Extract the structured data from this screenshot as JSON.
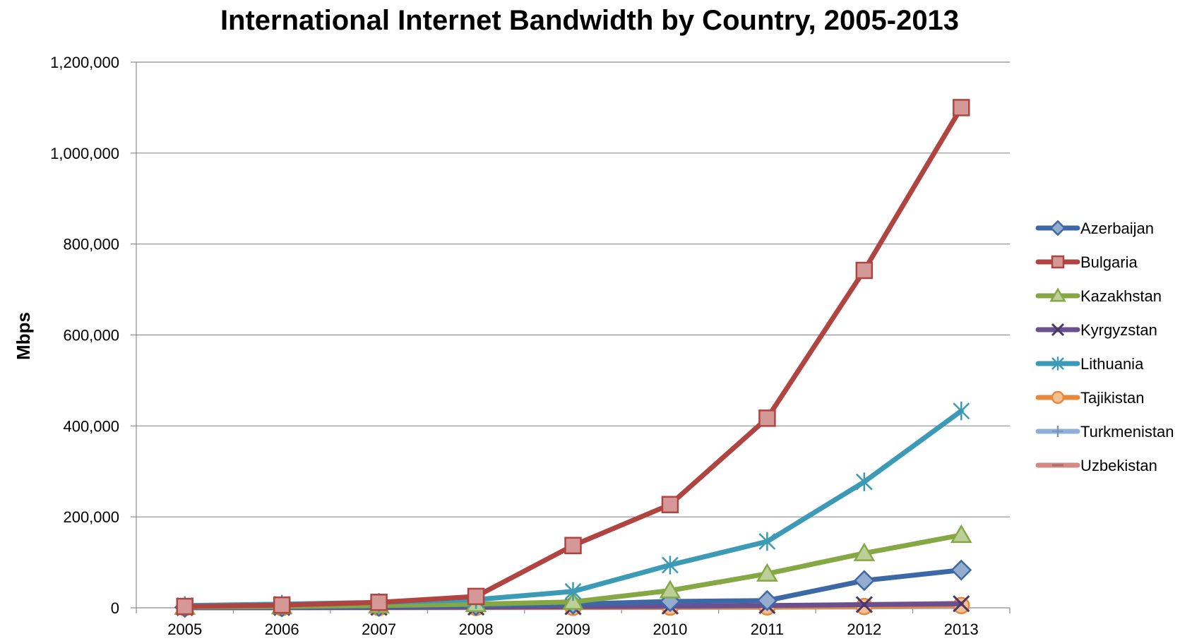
{
  "chart_data": {
    "type": "line",
    "title": "International Internet Bandwidth by Country, 2005-2013",
    "xlabel": "",
    "ylabel": "Mbps",
    "x": [
      "2005",
      "2006",
      "2007",
      "2008",
      "2009",
      "2010",
      "2011",
      "2012",
      "2013"
    ],
    "ylim": [
      0,
      1200000
    ],
    "yticks": [
      0,
      200000,
      400000,
      600000,
      800000,
      1000000,
      1200000
    ],
    "ytick_labels": [
      "0",
      "200,000",
      "400,000",
      "600,000",
      "800,000",
      "1,000,000",
      "1,200,000"
    ],
    "grid": "horizontal",
    "legend_position": "right",
    "series": [
      {
        "name": "Uzbekistan",
        "color": "#d48a86",
        "marker": "dash",
        "values": [
          500,
          800,
          1000,
          1500,
          2000,
          3000,
          4500,
          7000,
          10000
        ]
      },
      {
        "name": "Turkmenistan",
        "color": "#8fb0d9",
        "marker": "plus",
        "values": [
          100,
          150,
          200,
          300,
          500,
          800,
          1200,
          2000,
          3000
        ]
      },
      {
        "name": "Tajikistan",
        "color": "#e7893a",
        "marker": "circle",
        "values": [
          200,
          300,
          500,
          800,
          1000,
          1500,
          2000,
          3000,
          5000
        ]
      },
      {
        "name": "Kyrgyzstan",
        "color": "#6b4f8f",
        "marker": "x",
        "values": [
          300,
          500,
          800,
          1500,
          2500,
          3500,
          5000,
          7000,
          9000
        ]
      },
      {
        "name": "Azerbaijan",
        "color": "#3d68a6",
        "marker": "diamond",
        "values": [
          1000,
          2000,
          3000,
          5000,
          8000,
          14000,
          16000,
          60000,
          83000
        ]
      },
      {
        "name": "Kazakhstan",
        "color": "#86a844",
        "marker": "triangle",
        "values": [
          2000,
          3000,
          5000,
          8000,
          13000,
          38000,
          75000,
          120000,
          160000
        ]
      },
      {
        "name": "Lithuania",
        "color": "#3b9ab5",
        "marker": "asterisk",
        "values": [
          5000,
          8000,
          12000,
          18000,
          36000,
          94000,
          146000,
          277000,
          433000
        ]
      },
      {
        "name": "Bulgaria",
        "color": "#b04440",
        "marker": "square",
        "values": [
          3000,
          6000,
          12000,
          25000,
          137000,
          227000,
          417000,
          742000,
          1100000
        ]
      }
    ],
    "legend_order": [
      "Azerbaijan",
      "Bulgaria",
      "Kazakhstan",
      "Kyrgyzstan",
      "Lithuania",
      "Tajikistan",
      "Turkmenistan",
      "Uzbekistan"
    ]
  }
}
